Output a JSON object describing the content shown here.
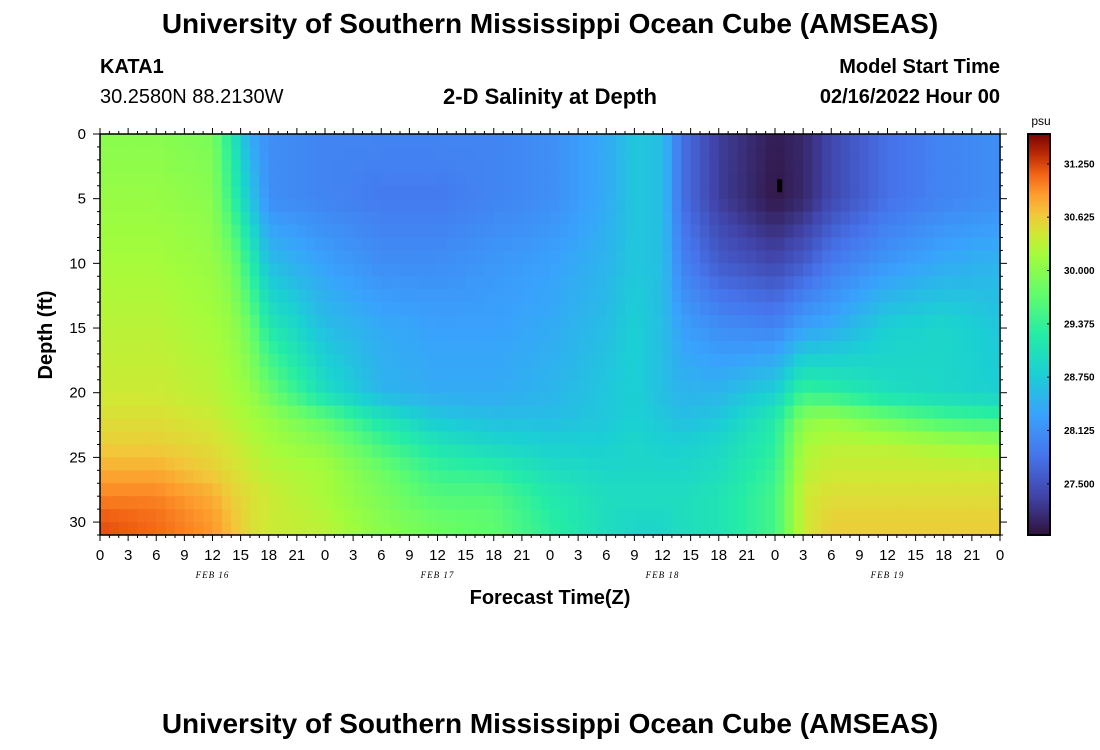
{
  "header": {
    "title": "University of Southern Mississippi Ocean Cube (AMSEAS)",
    "station_id": "KATA1",
    "coordinates": "30.2580N  88.2130W",
    "model_label": "Model Start Time",
    "model_start": "02/16/2022 Hour 00"
  },
  "footer": {
    "title": "University of Southern Mississippi Ocean Cube (AMSEAS)"
  },
  "colors": {
    "low": "#30123b",
    "mid_low": "#2f8ef9",
    "mid": "#96fb3e",
    "mid_high": "#fbb838",
    "high": "#7a0403"
  },
  "chart_data": {
    "type": "heatmap",
    "title": "2-D Salinity at Depth",
    "xlabel": "Forecast Time(Z)",
    "ylabel": "Depth (ft)",
    "xlim": [
      0,
      96
    ],
    "ylim": [
      31,
      0
    ],
    "x_tick_labels": [
      "0",
      "3",
      "6",
      "9",
      "12",
      "15",
      "18",
      "21",
      "0",
      "3",
      "6",
      "9",
      "12",
      "15",
      "18",
      "21",
      "0",
      "3",
      "6",
      "9",
      "12",
      "15",
      "18",
      "21",
      "0",
      "3",
      "6",
      "9",
      "12",
      "15",
      "18",
      "21",
      "0"
    ],
    "date_labels": [
      {
        "label": "FEB 16",
        "hour": 12
      },
      {
        "label": "FEB 17",
        "hour": 36
      },
      {
        "label": "FEB 18",
        "hour": 60
      },
      {
        "label": "FEB 19",
        "hour": 84
      }
    ],
    "y_ticks": [
      0,
      5,
      10,
      15,
      20,
      25,
      30
    ],
    "colorbar": {
      "unit": "psu",
      "range": [
        26.9,
        31.6
      ],
      "ticks": [
        "31.250",
        "30.625",
        "30.000",
        "29.375",
        "28.750",
        "28.125",
        "27.500"
      ]
    },
    "marker": {
      "hour": 72.5,
      "depth": 4
    },
    "x_hours": [
      0,
      6,
      12,
      14,
      16,
      18,
      24,
      30,
      36,
      42,
      48,
      54,
      57,
      60,
      62,
      66,
      72,
      75,
      78,
      84,
      90,
      96
    ],
    "depths_ft": [
      0,
      5,
      10,
      15,
      20,
      22,
      24,
      26,
      28,
      30,
      31
    ],
    "salinity": [
      [
        30.0,
        30.0,
        29.9,
        29.2,
        28.4,
        28.1,
        28.0,
        28.0,
        28.0,
        28.0,
        28.1,
        28.4,
        28.7,
        28.6,
        27.8,
        27.3,
        27.0,
        27.1,
        27.4,
        27.8,
        28.0,
        28.1
      ],
      [
        30.1,
        30.1,
        30.0,
        29.4,
        28.7,
        28.1,
        28.0,
        27.9,
        27.9,
        28.0,
        28.1,
        28.4,
        28.7,
        28.6,
        27.8,
        27.3,
        26.95,
        27.1,
        27.4,
        27.8,
        28.0,
        28.1
      ],
      [
        30.2,
        30.2,
        30.1,
        29.9,
        29.3,
        28.6,
        28.3,
        28.1,
        28.1,
        28.2,
        28.3,
        28.5,
        28.7,
        28.6,
        28.0,
        27.6,
        27.4,
        27.6,
        27.9,
        28.2,
        28.4,
        28.5
      ],
      [
        30.3,
        30.3,
        30.2,
        30.1,
        29.8,
        29.2,
        28.6,
        28.4,
        28.3,
        28.3,
        28.4,
        28.6,
        28.8,
        28.6,
        28.3,
        28.1,
        28.0,
        28.3,
        28.4,
        28.8,
        28.9,
        28.7
      ],
      [
        30.4,
        30.4,
        30.3,
        30.2,
        30.1,
        29.8,
        29.0,
        28.5,
        28.4,
        28.4,
        28.5,
        28.7,
        28.8,
        28.6,
        28.5,
        28.5,
        28.8,
        29.4,
        29.3,
        29.0,
        28.9,
        28.8
      ],
      [
        30.5,
        30.5,
        30.4,
        30.3,
        30.2,
        30.1,
        29.7,
        29.1,
        28.7,
        28.6,
        28.6,
        28.7,
        28.8,
        28.7,
        28.6,
        28.7,
        29.2,
        30.0,
        30.1,
        29.8,
        29.5,
        29.4
      ],
      [
        30.6,
        30.6,
        30.5,
        30.4,
        30.3,
        30.2,
        30.0,
        29.5,
        29.1,
        28.9,
        28.8,
        28.8,
        28.9,
        28.8,
        28.8,
        28.9,
        29.3,
        30.2,
        30.3,
        30.3,
        30.2,
        30.1
      ],
      [
        30.8,
        30.8,
        30.6,
        30.5,
        30.4,
        30.3,
        30.2,
        29.8,
        29.4,
        29.3,
        29.0,
        28.9,
        28.9,
        28.9,
        28.9,
        29.0,
        29.4,
        30.3,
        30.4,
        30.4,
        30.4,
        30.4
      ],
      [
        31.0,
        31.0,
        30.8,
        30.6,
        30.5,
        30.4,
        30.2,
        29.9,
        29.6,
        29.6,
        29.2,
        29.0,
        29.0,
        29.0,
        29.0,
        29.1,
        29.5,
        30.4,
        30.5,
        30.5,
        30.5,
        30.5
      ],
      [
        31.2,
        31.1,
        30.9,
        30.7,
        30.5,
        30.4,
        30.3,
        30.0,
        29.8,
        29.7,
        29.3,
        29.0,
        28.9,
        28.9,
        29.0,
        29.1,
        29.5,
        30.4,
        30.6,
        30.6,
        30.6,
        30.6
      ],
      [
        31.2,
        31.1,
        30.9,
        30.7,
        30.5,
        30.4,
        30.3,
        30.0,
        29.8,
        29.7,
        29.3,
        29.0,
        28.9,
        28.9,
        29.0,
        29.1,
        29.5,
        30.4,
        30.6,
        30.6,
        30.6,
        30.6
      ]
    ]
  }
}
